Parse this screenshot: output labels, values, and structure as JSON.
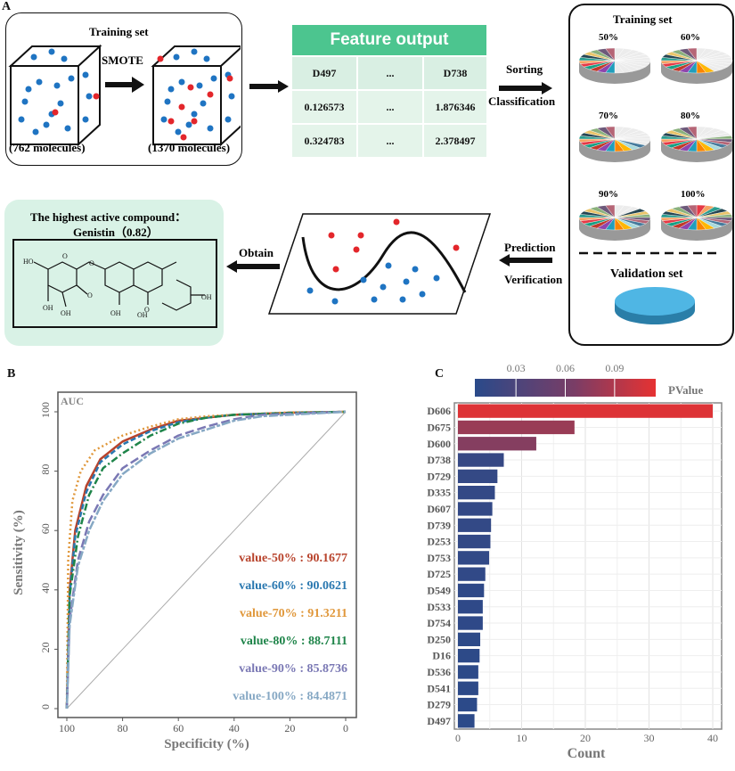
{
  "panel_labels": {
    "a": "A",
    "b": "B",
    "c": "C"
  },
  "workflow": {
    "training_box_title": "Training set",
    "smote_label": "SMOTE",
    "before_count": "(762 molecules)",
    "after_count": "(1370 molecules)",
    "feature_table": {
      "title": "Feature output",
      "headers": [
        "D497",
        "...",
        "D738"
      ],
      "rows": [
        [
          "0.126573",
          "...",
          "1.876346"
        ],
        [
          "0.324783",
          "...",
          "2.378497"
        ]
      ],
      "header_color": "#4cc58f"
    },
    "sorting_label": "Sorting",
    "classification_label": "Classification",
    "right_panel": {
      "title": "Training set",
      "pies": [
        "50%",
        "60%",
        "70%",
        "80%",
        "90%",
        "100%"
      ],
      "validation_label": "Validation set"
    },
    "prediction_label": "Prediction",
    "verification_label": "Verification",
    "obtain_label": "Obtain",
    "result_title": "The highest active compound：",
    "result_compound": "Genistin（0.82）",
    "molecule_atoms": [
      "HO",
      "O",
      "O",
      "O",
      "OH",
      "OH",
      "OH",
      "OH",
      "O",
      "OH"
    ]
  },
  "chart_data": [
    {
      "type": "line",
      "title": "",
      "annotation": "AUC",
      "xlabel": "Specificity (%)",
      "ylabel": "Sensitivity (%)",
      "xlim": [
        100,
        0
      ],
      "ylim": [
        0,
        100
      ],
      "x_reversed": true,
      "xticks": [
        "100",
        "80",
        "60",
        "40",
        "20",
        "0"
      ],
      "yticks": [
        "0",
        "20",
        "40",
        "60",
        "80",
        "100"
      ],
      "grid": false,
      "series": [
        {
          "name": "value-50% : 90.1677",
          "color": "#b8432c",
          "dash": "solid",
          "points": [
            [
              100,
              0
            ],
            [
              99,
              40
            ],
            [
              97,
              60
            ],
            [
              93,
              75
            ],
            [
              88,
              84
            ],
            [
              80,
              90
            ],
            [
              70,
              94
            ],
            [
              60,
              97
            ],
            [
              50,
              98
            ],
            [
              40,
              99
            ],
            [
              20,
              99.7
            ],
            [
              0,
              100
            ]
          ]
        },
        {
          "name": "value-60% : 90.0621",
          "color": "#2a78b0",
          "dash": "dash",
          "points": [
            [
              100,
              0
            ],
            [
              99,
              38
            ],
            [
              97,
              58
            ],
            [
              93,
              73
            ],
            [
              88,
              83
            ],
            [
              80,
              89
            ],
            [
              70,
              93.5
            ],
            [
              60,
              96.5
            ],
            [
              50,
              98
            ],
            [
              40,
              99
            ],
            [
              20,
              99.7
            ],
            [
              0,
              100
            ]
          ]
        },
        {
          "name": "value-70% : 91.3211",
          "color": "#e0973a",
          "dash": "dot",
          "points": [
            [
              100,
              0
            ],
            [
              99.5,
              50
            ],
            [
              98,
              70
            ],
            [
              95,
              80
            ],
            [
              90,
              87
            ],
            [
              80,
              92
            ],
            [
              70,
              95
            ],
            [
              60,
              97.5
            ],
            [
              50,
              98.5
            ],
            [
              40,
              99
            ],
            [
              20,
              99.8
            ],
            [
              0,
              100
            ]
          ]
        },
        {
          "name": "value-80% : 88.7111",
          "color": "#1e8449",
          "dash": "dashdot",
          "points": [
            [
              100,
              0
            ],
            [
              99,
              38
            ],
            [
              96,
              58
            ],
            [
              92,
              72
            ],
            [
              87,
              81
            ],
            [
              80,
              86
            ],
            [
              70,
              92
            ],
            [
              60,
              96
            ],
            [
              50,
              98
            ],
            [
              40,
              99
            ],
            [
              20,
              99.6
            ],
            [
              0,
              100
            ]
          ]
        },
        {
          "name": "value-90% : 85.8736",
          "color": "#7a78b4",
          "dash": "longdash",
          "points": [
            [
              100,
              0
            ],
            [
              99,
              30
            ],
            [
              96,
              50
            ],
            [
              92,
              63
            ],
            [
              87,
              72
            ],
            [
              80,
              81
            ],
            [
              70,
              87
            ],
            [
              60,
              92
            ],
            [
              50,
              95
            ],
            [
              40,
              97.5
            ],
            [
              30,
              99
            ],
            [
              0,
              100
            ]
          ]
        },
        {
          "name": "value-100% : 84.4871",
          "color": "#86a8c4",
          "dash": "twodash",
          "points": [
            [
              100,
              0
            ],
            [
              99,
              28
            ],
            [
              96,
              48
            ],
            [
              92,
              60
            ],
            [
              87,
              70
            ],
            [
              80,
              79
            ],
            [
              70,
              86
            ],
            [
              60,
              91
            ],
            [
              50,
              94
            ],
            [
              40,
              97
            ],
            [
              30,
              98.5
            ],
            [
              0,
              100
            ]
          ]
        }
      ],
      "legend_placement": "bottom-right"
    },
    {
      "type": "bar",
      "orientation": "horizontal",
      "xlabel": "Count",
      "ylabel": "",
      "xlim": [
        0,
        40
      ],
      "xticks": [
        "0",
        "10",
        "20",
        "30",
        "40"
      ],
      "grid": true,
      "categories": [
        "D606",
        "D675",
        "D600",
        "D738",
        "D729",
        "D335",
        "D607",
        "D739",
        "D253",
        "D753",
        "D725",
        "D549",
        "D533",
        "D754",
        "D250",
        "D16",
        "D536",
        "D541",
        "D279",
        "D497"
      ],
      "values": [
        40,
        18.3,
        12.3,
        7.2,
        6.2,
        5.8,
        5.4,
        5.2,
        5.1,
        4.9,
        4.3,
        4.1,
        3.9,
        3.9,
        3.5,
        3.4,
        3.2,
        3.2,
        3.0,
        2.6
      ],
      "pvalues": [
        0.11,
        0.07,
        0.058,
        0.012,
        0.011,
        0.01,
        0.01,
        0.01,
        0.01,
        0.009,
        0.009,
        0.008,
        0.008,
        0.008,
        0.007,
        0.007,
        0.007,
        0.007,
        0.006,
        0.006
      ],
      "colorbar": {
        "title": "PValue",
        "ticks": [
          "0.03",
          "0.06",
          "0.09"
        ],
        "range": [
          0.005,
          0.115
        ],
        "low_color": "#2a4a8a",
        "high_color": "#e63232"
      }
    }
  ]
}
